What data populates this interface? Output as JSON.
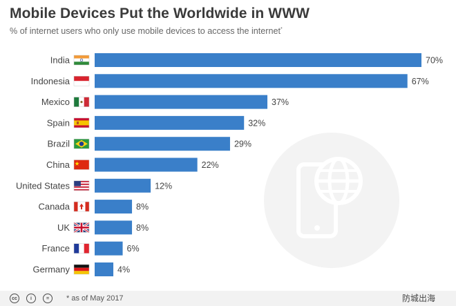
{
  "chart_data": {
    "type": "bar",
    "orientation": "horizontal",
    "title": "Mobile Devices Put the Worldwide in WWW",
    "subtitle": "% of internet users who only use mobile devices to access the internet",
    "subtitle_mark": "*",
    "categories": [
      "India",
      "Indonesia",
      "Mexico",
      "Spain",
      "Brazil",
      "China",
      "United States",
      "Canada",
      "UK",
      "France",
      "Germany"
    ],
    "values": [
      70,
      67,
      37,
      32,
      29,
      22,
      12,
      8,
      8,
      6,
      4
    ],
    "value_labels": [
      "70%",
      "67%",
      "37%",
      "32%",
      "29%",
      "22%",
      "12%",
      "8%",
      "8%",
      "6%",
      "4%"
    ],
    "flags": [
      "flag-india",
      "flag-indonesia",
      "flag-mexico",
      "flag-spain",
      "flag-brazil",
      "flag-china",
      "flag-united-states",
      "flag-canada",
      "flag-uk",
      "flag-france",
      "flag-germany"
    ],
    "xlim": [
      0,
      70
    ],
    "bar_color": "#3a7fc9",
    "grid": false,
    "legend": "none"
  },
  "footer": {
    "footnote": "* as of May 2017",
    "icons": [
      "cc-icon",
      "attribution-icon",
      "noderivs-icon"
    ],
    "watermark": "防城出海"
  },
  "colors": {
    "bar": "#3a7fc9",
    "title": "#3a3a3a",
    "footer_bg": "#f2f2f2",
    "bg_icon": "#f3f3f3"
  }
}
